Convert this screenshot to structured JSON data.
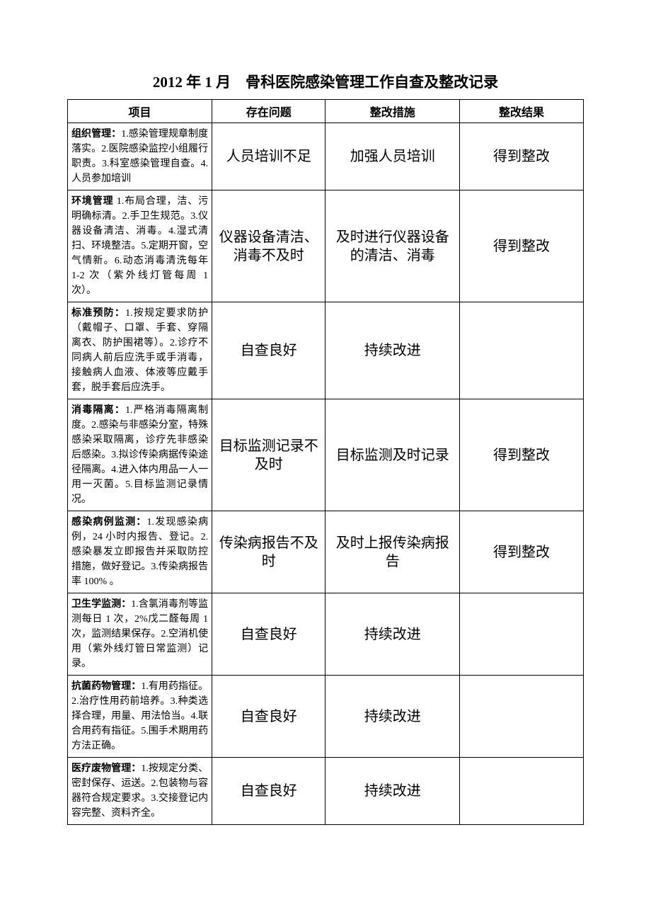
{
  "title": "2012 年 1 月　骨科医院感染管理工作自查及整改记录",
  "headers": {
    "col1": "项目",
    "col2": "存在问题",
    "col3": "整改措施",
    "col4": "整改结果"
  },
  "rows": [
    {
      "label": "组织管理：",
      "content": "1.感染管理规章制度落实。2.医院感染监控小组履行职责。3.科室感染管理自查。4.人员参加培训",
      "problem": "人员培训不足",
      "measure": "加强人员培训",
      "result": "得到整改"
    },
    {
      "label": "环境管理",
      "content": " 1.布局合理，洁、污明确标清。2.手卫生规范。3.仪器设备清洁、消毒。4.湿式清扫、环境整洁。5.定期开窗，空气情新。6.动态消毒清洗每年 1-2 次（紫外线灯管每周 1 次）。",
      "problem": "仪器设备清洁、消毒不及时",
      "measure": "及时进行仪器设备的清洁、消毒",
      "result": "得到整改"
    },
    {
      "label": "标准预防：",
      "content": "1.按规定要求防护（戴帽子、口罩、手套、穿隔离衣、防护围裙等）。2.诊疗不同病人前后应洗手或手消毒，接触病人血液、体液等应戴手套，脱手套后应洗手。",
      "problem": "自查良好",
      "measure": "持续改进",
      "result": ""
    },
    {
      "label": "消毒隔离：",
      "content": "1.严格消毒隔离制度。2.感染与非感染分室，特殊感染采取隔离，诊疗先非感染后感染。3.拟诊传染病据传染途径隔离。4.进入体内用品一人一用一灭菌。5.目标监测记录情况。",
      "problem": "目标监测记录不及时",
      "measure": "目标监测及时记录",
      "result": "得到整改"
    },
    {
      "label": "感染病例监测：",
      "content": "1.发现感染病例，24 小时内报告、登记。2.感染暴发立即报告并采取防控措施，做好登记。3.传染病报告率 100% 。",
      "problem": "传染病报告不及时",
      "measure": "及时上报传染病报告",
      "result": "得到整改"
    },
    {
      "label": "卫生学监测：",
      "content": "1.含氯消毒剂等监测每日 1 次，2%戊二醛每周 1 次，监测结果保存。2.空消机使用（紫外线灯管日常监测）记录。",
      "problem": "自查良好",
      "measure": "持续改进",
      "result": ""
    },
    {
      "label": "抗菌药物管理：",
      "content": "1.有用药指征。2.治疗性用药前培养。3.种类选择合理，用量、用法恰当。4.联合用药有指征。5.围手术期用药方法正确。",
      "problem": "自查良好",
      "measure": "持续改进",
      "result": ""
    },
    {
      "label": "医疗废物管理：",
      "content": "1.按规定分类、密封保存、运送。2.包装物与容器符合规定要求。3.交接登记内容完整、资料齐全。",
      "problem": "自查良好",
      "measure": "持续改进",
      "result": ""
    }
  ]
}
